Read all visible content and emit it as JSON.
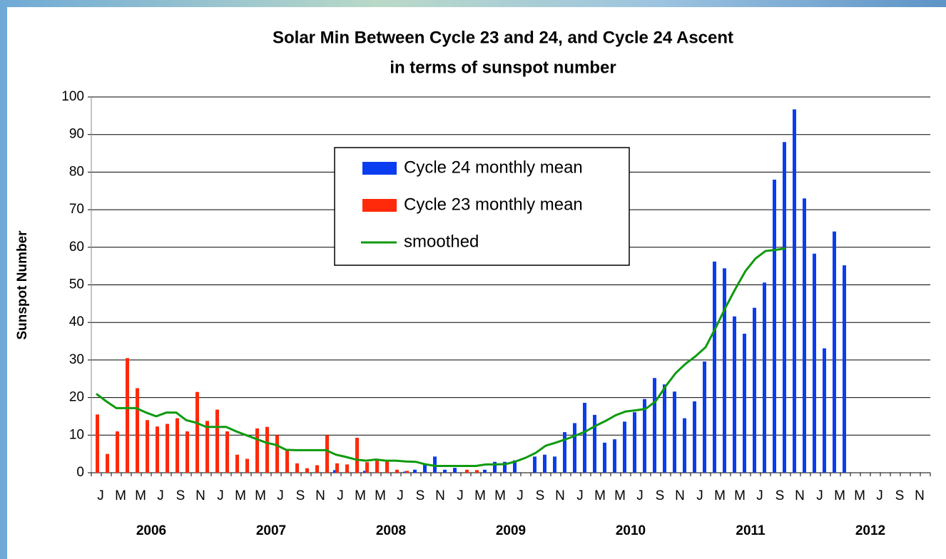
{
  "chart_data": {
    "type": "bar",
    "title": "Solar Min Between Cycle 23 and 24, and Cycle 24 Ascent",
    "subtitle": "in terms of sunspot number",
    "y_label": "Sunspot Number",
    "categories": [
      "J",
      null,
      "M",
      null,
      "M",
      null,
      "J",
      null,
      "S",
      null,
      "N",
      null,
      "J",
      null,
      "M",
      null,
      "M",
      null,
      "J",
      null,
      "S",
      null,
      "N",
      null,
      "J",
      null,
      "M",
      null,
      "M",
      null,
      "J",
      null,
      "S",
      null,
      "N",
      null,
      "J",
      null,
      "M",
      null,
      "M",
      null,
      "J",
      null,
      "S",
      null,
      "N",
      null,
      "J",
      null,
      "M",
      null,
      "M",
      null,
      "J",
      null,
      "S",
      null,
      "N",
      null,
      "J",
      null,
      "M",
      null,
      "M",
      null,
      "J",
      null,
      "S",
      null,
      "N",
      null,
      "J",
      null,
      "M",
      null,
      "M",
      null,
      "J",
      null,
      "S",
      null,
      "N",
      null
    ],
    "years": [
      "2006",
      "2007",
      "2008",
      "2009",
      "2010",
      "2011",
      "2012"
    ],
    "series": [
      {
        "name": "Cycle 24 monthly mean",
        "color": "#0a3cf0",
        "values": [
          null,
          null,
          null,
          null,
          null,
          null,
          null,
          null,
          null,
          null,
          null,
          null,
          null,
          null,
          null,
          null,
          null,
          null,
          null,
          null,
          null,
          null,
          null,
          null,
          0.7,
          null,
          null,
          0.5,
          null,
          null,
          null,
          0.3,
          0.8,
          2.5,
          4.3,
          0.8,
          1.3,
          null,
          null,
          0.8,
          2.9,
          2.9,
          3.3,
          null,
          4.3,
          4.8,
          4.3,
          10.8,
          13.2,
          18.6,
          15.4,
          8,
          8.9,
          13.6,
          16.1,
          19.6,
          25.2,
          23.5,
          21.6,
          14.5,
          19,
          29.6,
          56.2,
          54.4,
          41.6,
          37,
          43.9,
          50.6,
          78,
          88,
          96.7,
          73,
          58.3,
          33.1,
          64.2,
          55.2,
          null,
          null,
          null,
          null,
          null,
          null,
          null,
          null
        ]
      },
      {
        "name": "Cycle 23 monthly mean",
        "color": "#ff2a0a",
        "values": [
          15.5,
          5,
          11,
          30.5,
          22.5,
          14,
          12.3,
          13,
          14.5,
          11,
          21.5,
          13.8,
          16.8,
          11,
          4.8,
          3.7,
          11.8,
          12.2,
          10,
          6,
          2.5,
          1.2,
          2,
          10,
          2.5,
          2.2,
          9.3,
          2.8,
          3.2,
          3.4,
          0.8,
          0.5,
          null,
          null,
          null,
          null,
          null,
          0.8,
          0.7,
          null,
          null,
          null,
          null,
          null,
          null,
          null,
          null,
          null,
          null,
          null,
          null,
          null,
          null,
          null,
          null,
          null,
          null,
          null,
          null,
          null,
          null,
          null,
          null,
          null,
          null,
          null,
          null,
          null,
          null,
          null,
          null,
          null,
          null,
          null,
          null,
          null,
          null,
          null,
          null,
          null,
          null,
          null,
          null,
          null
        ]
      },
      {
        "name": "smoothed",
        "type": "line",
        "color": "#0f9a0f",
        "values": [
          21,
          19,
          17.2,
          17.2,
          17.2,
          16,
          15,
          16,
          16,
          14,
          13.3,
          12.2,
          12.2,
          12.2,
          11,
          10,
          9,
          8,
          7.4,
          6.1,
          6,
          6,
          6,
          6,
          4.8,
          4.2,
          3.5,
          3.2,
          3.5,
          3.2,
          3.2,
          3,
          2.9,
          2.2,
          1.8,
          1.8,
          1.8,
          1.8,
          1.8,
          2.2,
          2.2,
          2.3,
          3,
          4,
          5.3,
          7.2,
          8,
          8.9,
          9.9,
          11,
          12.5,
          13.8,
          15.3,
          16.3,
          16.6,
          17,
          19,
          23,
          26.5,
          29,
          31,
          33.4,
          38.5,
          44,
          49,
          53.7,
          57,
          59,
          59.3,
          59.7,
          null,
          null,
          null,
          null,
          null,
          null,
          null,
          null,
          null,
          null,
          null,
          null,
          null,
          null
        ]
      }
    ],
    "ylim": [
      0,
      100
    ],
    "yticks": [
      0,
      10,
      20,
      30,
      40,
      50,
      60,
      70,
      80,
      90,
      100
    ],
    "grid": true
  }
}
